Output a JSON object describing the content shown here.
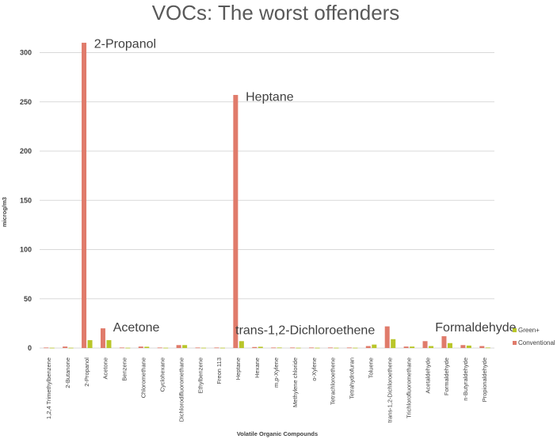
{
  "chart_data": {
    "type": "bar",
    "title": "VOCs: The worst offenders",
    "xlabel": "Volatile Organic Compounds",
    "ylabel": "microg/m3",
    "ylim": [
      0,
      300
    ],
    "yticks": [
      0,
      50,
      100,
      150,
      200,
      250,
      300
    ],
    "grid": true,
    "legend_position": "right",
    "categories": [
      "1,2,4 Trimethylbenzene",
      "2-Butanone",
      "2-Propanol",
      "Acetone",
      "Benzene",
      "Chloromethane",
      "Cyclohexane",
      "Dichlorodifluoromethane",
      "Ethylbenzene",
      "Freon 113",
      "Heptane",
      "Hexane",
      "m,p-Xylene",
      "Methylene chloride",
      "o-Xylene",
      "Tetrachloroethene",
      "Tetrahydrofuran",
      "Toluene",
      "trans-1,2-Dichloroethene",
      "Trichlorofluoromethane",
      "Acetaldehyde",
      "Formaldehyde",
      "n-Butyraldehyde",
      "Propionaldehyde"
    ],
    "series": [
      {
        "name": "Conventional",
        "color": "#e07b6b",
        "values": [
          0.5,
          1.5,
          310,
          20,
          0.5,
          1.5,
          0.5,
          3,
          0.5,
          0.5,
          257,
          1,
          0.5,
          0.5,
          0.5,
          0.5,
          0.5,
          2,
          22,
          1.5,
          7,
          12,
          3,
          2
        ]
      },
      {
        "name": "Green+",
        "color": "#b9c62a",
        "values": [
          0.3,
          0.3,
          8,
          8,
          0.3,
          1.3,
          0.3,
          3,
          0.3,
          0.3,
          7,
          1.3,
          0.5,
          0.3,
          0.3,
          0.3,
          0.3,
          3.5,
          9,
          1.5,
          2,
          5,
          2.5,
          0.5
        ]
      }
    ],
    "annotations": [
      {
        "text": "2-Propanol",
        "category": "2-Propanol",
        "y": 305
      },
      {
        "text": "Acetone",
        "category": "Acetone",
        "y": 17
      },
      {
        "text": "Heptane",
        "category": "Heptane",
        "y": 251
      },
      {
        "text": "trans-1,2-Dichloroethene",
        "category": "Heptane",
        "y": 14
      },
      {
        "text": "Formaldehyde",
        "category": "Acetaldehyde",
        "y": 17
      }
    ]
  }
}
